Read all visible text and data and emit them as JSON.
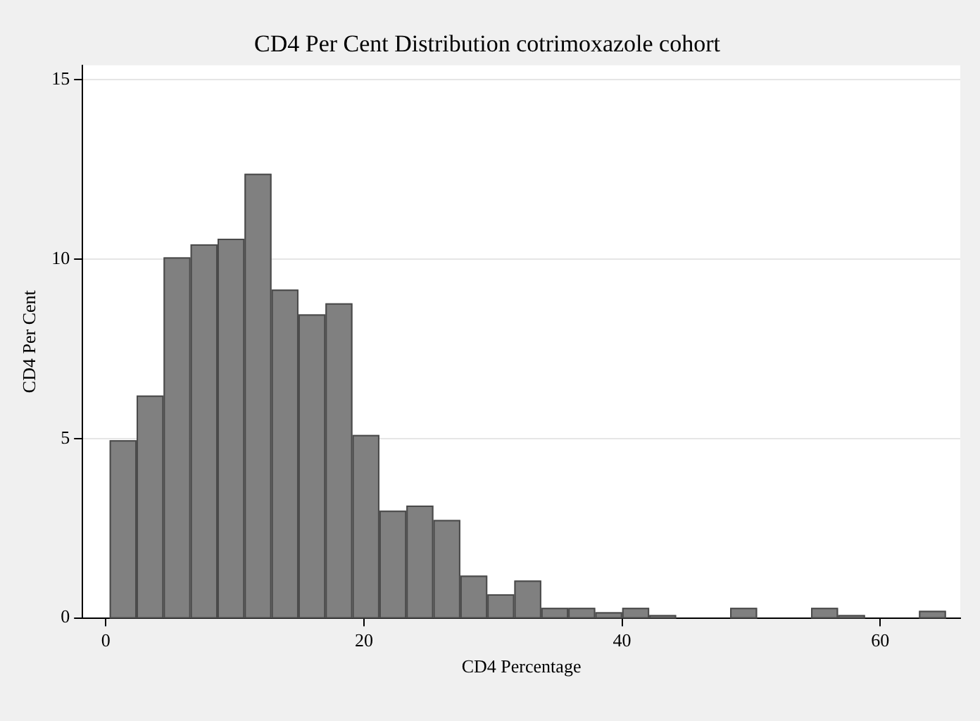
{
  "chart_data": {
    "type": "histogram",
    "title": "CD4 Per Cent Distribution cotrimoxazole cohort",
    "xlabel": "CD4 Percentage",
    "ylabel": "CD4 Per Cent",
    "color": "#808080",
    "bins": [
      0.3,
      2.39,
      4.48,
      6.57,
      8.66,
      10.75,
      12.84,
      14.93,
      17.02,
      19.11,
      21.2,
      23.29,
      25.38,
      27.47,
      29.56,
      31.65,
      33.74,
      35.83,
      37.92,
      40.01,
      42.1,
      44.19,
      46.28,
      48.37,
      50.46,
      52.55,
      54.64,
      56.73,
      58.82,
      60.91,
      63,
      65.09
    ],
    "values": [
      4.95,
      6.2,
      10.05,
      10.41,
      10.57,
      12.38,
      9.15,
      8.46,
      8.77,
      5.1,
      2.99,
      3.13,
      2.73,
      1.18,
      0.66,
      1.04,
      0.28,
      0.28,
      0.16,
      0.28,
      0.08,
      0,
      0,
      0.28,
      0,
      0,
      0.28,
      0.08,
      0,
      0,
      0.2
    ],
    "xlim": [
      -1.8,
      66.2
    ],
    "ylim": [
      0,
      15.4
    ],
    "xticks": [
      0,
      20,
      40,
      60
    ],
    "yticks": [
      0,
      5,
      10,
      15
    ],
    "grid": "y",
    "legend": false
  }
}
